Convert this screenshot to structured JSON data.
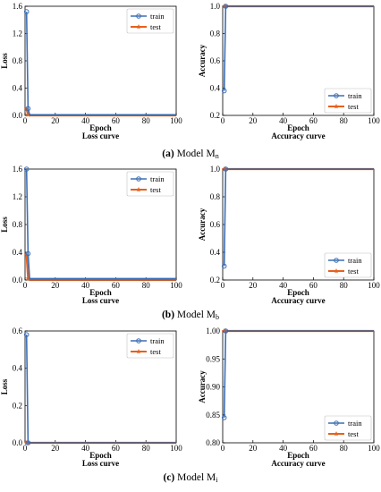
{
  "chart_data": [
    {
      "type": "line",
      "panel": "loss",
      "xlabel": "Epoch",
      "title": "Loss curve",
      "ylabel": "Loss",
      "xlim": [
        0,
        100
      ],
      "ylim": [
        0,
        1.6
      ],
      "xticks": [
        "0",
        "20",
        "40",
        "60",
        "80",
        "100"
      ],
      "yticks": [
        "0.0",
        "0.4",
        "0.8",
        "1.2",
        "1.6"
      ],
      "legend": "top-right",
      "series": [
        {
          "name": "train",
          "color": "#3d6fb4",
          "marker": "circle",
          "x": [
            1,
            2,
            3,
            100
          ],
          "y": [
            1.52,
            0.1,
            0.01,
            0.01
          ]
        },
        {
          "name": "test",
          "color": "#e8601c",
          "marker": "star",
          "x": [
            1,
            2,
            3,
            100
          ],
          "y": [
            0.09,
            0.01,
            0.0,
            0.0
          ]
        }
      ]
    },
    {
      "type": "line",
      "panel": "accuracy",
      "xlabel": "Epoch",
      "title": "Accuracy curve",
      "ylabel": "Accuracy",
      "xlim": [
        0,
        100
      ],
      "ylim": [
        0.2,
        1.0
      ],
      "xticks": [
        "0",
        "20",
        "40",
        "60",
        "80",
        "100"
      ],
      "yticks": [
        "0.2",
        "0.4",
        "0.6",
        "0.8",
        "1.0"
      ],
      "legend": "bottom-right",
      "series": [
        {
          "name": "train",
          "color": "#3d6fb4",
          "marker": "circle",
          "x": [
            1,
            2,
            3,
            100
          ],
          "y": [
            0.38,
            1.0,
            1.0,
            1.0
          ]
        },
        {
          "name": "test",
          "color": "#e8601c",
          "marker": "star",
          "x": [
            1,
            2,
            3,
            100
          ],
          "y": [
            1.0,
            1.0,
            1.0,
            1.0
          ]
        }
      ]
    },
    {
      "type": "line",
      "panel": "loss",
      "xlabel": "Epoch",
      "title": "Loss curve",
      "ylabel": "Loss",
      "xlim": [
        0,
        100
      ],
      "ylim": [
        0,
        1.6
      ],
      "xticks": [
        "0",
        "20",
        "40",
        "60",
        "80",
        "100"
      ],
      "yticks": [
        "0.0",
        "0.4",
        "0.8",
        "1.2",
        "1.6"
      ],
      "legend": "top-right",
      "series": [
        {
          "name": "train",
          "color": "#3d6fb4",
          "marker": "circle",
          "x": [
            1,
            2,
            3,
            100
          ],
          "y": [
            1.6,
            0.38,
            0.02,
            0.02
          ]
        },
        {
          "name": "test",
          "color": "#e8601c",
          "marker": "star",
          "x": [
            1,
            2,
            3,
            100
          ],
          "y": [
            0.36,
            0.02,
            0.0,
            0.0
          ]
        }
      ]
    },
    {
      "type": "line",
      "panel": "accuracy",
      "xlabel": "Epoch",
      "title": "Accuracy curve",
      "ylabel": "Accuracy",
      "xlim": [
        0,
        100
      ],
      "ylim": [
        0.2,
        1.0
      ],
      "xticks": [
        "0",
        "20",
        "40",
        "60",
        "80",
        "100"
      ],
      "yticks": [
        "0.2",
        "0.4",
        "0.6",
        "0.8",
        "1.0"
      ],
      "legend": "bottom-right",
      "series": [
        {
          "name": "train",
          "color": "#3d6fb4",
          "marker": "circle",
          "x": [
            1,
            2,
            3,
            100
          ],
          "y": [
            0.3,
            1.0,
            1.0,
            1.0
          ]
        },
        {
          "name": "test",
          "color": "#e8601c",
          "marker": "star",
          "x": [
            1,
            2,
            3,
            100
          ],
          "y": [
            1.0,
            1.0,
            1.0,
            1.0
          ]
        }
      ]
    },
    {
      "type": "line",
      "panel": "loss",
      "xlabel": "Epoch",
      "title": "Loss curve",
      "ylabel": "Loss",
      "xlim": [
        0,
        100
      ],
      "ylim": [
        0,
        0.6
      ],
      "xticks": [
        "0",
        "20",
        "40",
        "60",
        "80",
        "100"
      ],
      "yticks": [
        "0.0",
        "0.2",
        "0.4",
        "0.6"
      ],
      "legend": "top-right",
      "series": [
        {
          "name": "train",
          "color": "#3d6fb4",
          "marker": "circle",
          "x": [
            1,
            2,
            3,
            100
          ],
          "y": [
            0.58,
            0.0,
            0.0,
            0.0
          ]
        },
        {
          "name": "test",
          "color": "#e8601c",
          "marker": "star",
          "x": [
            1,
            2,
            3,
            100
          ],
          "y": [
            0.0,
            0.0,
            0.0,
            0.0
          ]
        }
      ]
    },
    {
      "type": "line",
      "panel": "accuracy",
      "xlabel": "Epoch",
      "title": "Accuracy curve",
      "ylabel": "Accuracy",
      "xlim": [
        0,
        100
      ],
      "ylim": [
        0.8,
        1.0
      ],
      "xticks": [
        "0",
        "20",
        "40",
        "60",
        "80",
        "100"
      ],
      "yticks": [
        "0.80",
        "0.85",
        "0.90",
        "0.95",
        "1.00"
      ],
      "legend": "bottom-right",
      "series": [
        {
          "name": "train",
          "color": "#3d6fb4",
          "marker": "circle",
          "x": [
            1,
            2,
            3,
            100
          ],
          "y": [
            0.845,
            1.0,
            1.0,
            1.0
          ]
        },
        {
          "name": "test",
          "color": "#e8601c",
          "marker": "star",
          "x": [
            1,
            2,
            3,
            100
          ],
          "y": [
            1.0,
            1.0,
            1.0,
            1.0
          ]
        }
      ]
    }
  ],
  "captions": [
    {
      "label": "(a)",
      "text": " Model M",
      "sub": "n"
    },
    {
      "label": "(b)",
      "text": " Model M",
      "sub": "b"
    },
    {
      "label": "(c)",
      "text": " Model M",
      "sub": "i"
    }
  ]
}
